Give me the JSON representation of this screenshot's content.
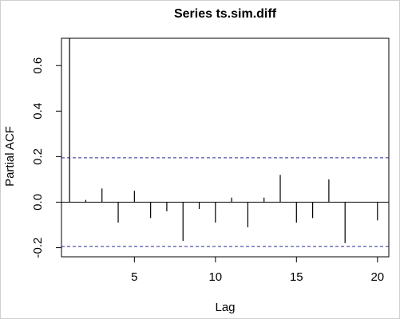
{
  "chart_data": {
    "type": "bar",
    "title": "Series  ts.sim.diff",
    "xlabel": "Lag",
    "ylabel": "Partial ACF",
    "xlim": [
      0.5,
      20.7
    ],
    "ylim": [
      -0.24,
      0.72
    ],
    "x_ticks": [
      "5",
      "10",
      "15",
      "20"
    ],
    "y_ticks": [
      "-0.2",
      "0.0",
      "0.2",
      "0.4",
      "0.6"
    ],
    "confidence_bound": 0.195,
    "x": [
      1,
      2,
      3,
      4,
      5,
      6,
      7,
      8,
      9,
      10,
      11,
      12,
      13,
      14,
      15,
      16,
      17,
      18,
      19,
      20
    ],
    "values": [
      0.72,
      0.01,
      0.06,
      -0.09,
      0.05,
      -0.07,
      -0.04,
      -0.17,
      -0.03,
      -0.09,
      0.02,
      -0.11,
      0.02,
      0.12,
      -0.09,
      -0.07,
      0.1,
      -0.18,
      0.0,
      -0.08
    ]
  }
}
